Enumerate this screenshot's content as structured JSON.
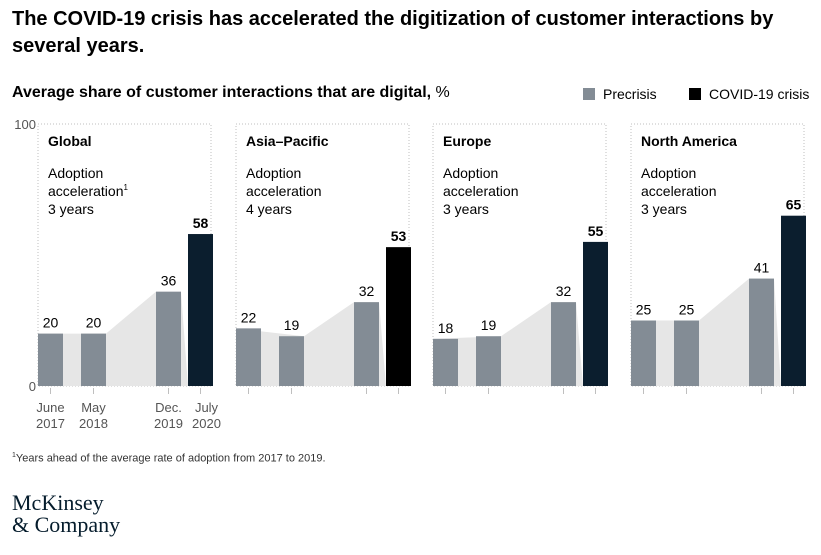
{
  "header": {
    "title": "The COVID-19 crisis has accelerated the digitization of customer interactions by several years.",
    "subtitle": "Average share of customer interactions that are digital,",
    "subtitle_unit": "%"
  },
  "legend": {
    "precrisis_label": "Precrisis",
    "covid_label": "COVID-19 crisis"
  },
  "colors": {
    "precrisis": "#838c95",
    "covid_dark_navy": "#0b1e2e",
    "covid_black": "#000000",
    "area": "#e6e6e6",
    "panel_border": "#bfbfbf"
  },
  "footnote": {
    "marker": "1",
    "text": "Years ahead of the average rate of adoption from 2017 to 2019."
  },
  "logo": {
    "line1": "McKinsey",
    "line2": "& Company"
  },
  "chart_data": {
    "type": "bar",
    "ylim": [
      0,
      100
    ],
    "y_ticks": [
      "100",
      "0"
    ],
    "categories": [
      "June 2017",
      "May 2018",
      "Dec. 2019",
      "July 2020"
    ],
    "category_labels": [
      [
        "June",
        "2017"
      ],
      [
        "May",
        "2018"
      ],
      [
        "Dec.",
        "2019"
      ],
      [
        "July",
        "2020"
      ]
    ],
    "panels": [
      {
        "name": "Global",
        "note_lines": [
          "Adoption",
          "acceleration",
          "3 years"
        ],
        "note_sup": "1",
        "values": [
          20,
          20,
          36,
          58
        ],
        "last_color": "covid_dark_navy"
      },
      {
        "name": "Asia–Pacific",
        "note_lines": [
          "Adoption",
          "acceleration",
          "4 years"
        ],
        "note_sup": "",
        "values": [
          22,
          19,
          32,
          53
        ],
        "last_color": "covid_black"
      },
      {
        "name": "Europe",
        "note_lines": [
          "Adoption",
          "acceleration",
          "3 years"
        ],
        "note_sup": "",
        "values": [
          18,
          19,
          32,
          55
        ],
        "last_color": "covid_dark_navy"
      },
      {
        "name": "North America",
        "note_lines": [
          "Adoption",
          "acceleration",
          "3 years"
        ],
        "note_sup": "",
        "values": [
          25,
          25,
          41,
          65
        ],
        "last_color": "covid_dark_navy"
      }
    ]
  }
}
